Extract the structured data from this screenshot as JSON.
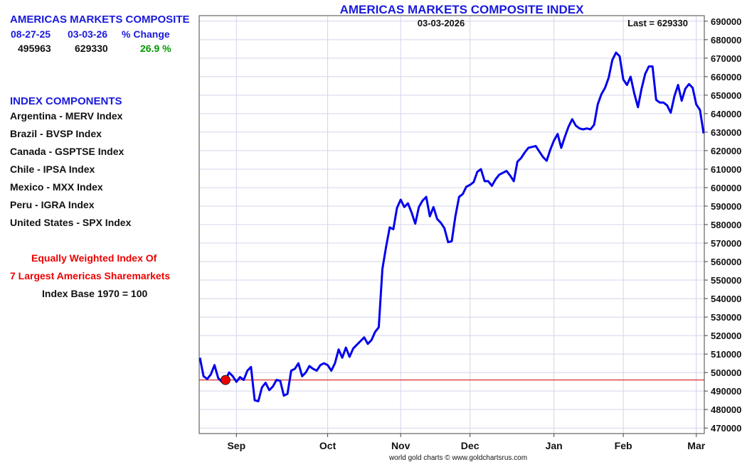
{
  "chart_title": "AMERICAS MARKETS COMPOSITE INDEX",
  "chart_date": "03-03-2026",
  "chart_last": "Last = 629330",
  "footer": "world gold charts © www.goldchartsrus.com",
  "summary": {
    "title": "AMERICAS MARKETS COMPOSITE",
    "col1_header": "08-27-25",
    "col2_header": "03-03-26",
    "col3_header": "% Change",
    "col1_value": "495963",
    "col2_value": "629330",
    "col3_value": "26.9 %"
  },
  "components": {
    "title": "INDEX COMPONENTS",
    "items": [
      "Argentina - MERV Index",
      "Brazil - BVSP Index",
      "Canada - GSPTSE Index",
      "Chile - IPSA Index",
      "Mexico - MXX Index",
      "Peru - IGRA Index",
      "United States - SPX Index"
    ]
  },
  "notes": {
    "line1": "Equally Weighted Index Of",
    "line2": "7 Largest Americas Sharemarkets",
    "line3": "Index Base 1970 = 100"
  },
  "colors": {
    "line": "#0000ee",
    "reference_line": "#cc0000",
    "marker": "#ee0000",
    "grid": "#d4d4ec",
    "title": "#1a1adc"
  },
  "chart_data": {
    "type": "line",
    "title": "AMERICAS MARKETS COMPOSITE INDEX",
    "x_labels": [
      "Sep",
      "Oct",
      "Nov",
      "Dec",
      "Jan",
      "Feb",
      "Mar"
    ],
    "x_label_index": [
      10,
      35,
      55,
      74,
      97,
      116,
      136
    ],
    "y_ticks": [
      "470000",
      "480000",
      "490000",
      "500000",
      "510000",
      "520000",
      "530000",
      "540000",
      "550000",
      "560000",
      "570000",
      "580000",
      "590000",
      "600000",
      "610000",
      "620000",
      "630000",
      "640000",
      "650000",
      "660000",
      "670000",
      "680000",
      "690000"
    ],
    "ylim": [
      467000,
      693000
    ],
    "grid": true,
    "reference_value": 495963,
    "marker_index": 7,
    "series": [
      {
        "values": [
          508000,
          498000,
          496500,
          499000,
          504000,
          497000,
          495000,
          495963,
          500000,
          498000,
          495000,
          497500,
          496000,
          501000,
          503000,
          485000,
          484500,
          492000,
          494500,
          490500,
          492500,
          496000,
          495500,
          487500,
          488500,
          501000,
          502000,
          505000,
          498000,
          500000,
          503500,
          502000,
          501000,
          504000,
          505000,
          504000,
          501000,
          505000,
          512500,
          508000,
          513500,
          508500,
          513000,
          515000,
          517000,
          519000,
          515500,
          517500,
          522000,
          524500,
          556000,
          568000,
          578500,
          577500,
          589000,
          593500,
          589500,
          591500,
          586500,
          580500,
          589500,
          593000,
          595000,
          584500,
          589500,
          583000,
          581000,
          578000,
          570500,
          571000,
          584500,
          595000,
          596500,
          600500,
          601500,
          603000,
          608500,
          610000,
          603500,
          603500,
          601000,
          604500,
          607000,
          608000,
          609000,
          606500,
          603500,
          614000,
          616000,
          619000,
          621500,
          622000,
          622500,
          619500,
          616500,
          614500,
          620500,
          625500,
          629000,
          621500,
          627500,
          633000,
          637000,
          633500,
          632000,
          631500,
          632000,
          631500,
          634000,
          645000,
          650500,
          654000,
          659500,
          669000,
          673000,
          671000,
          658500,
          655500,
          660000,
          651000,
          643500,
          653500,
          661500,
          665500,
          665500,
          647500,
          646000,
          646000,
          644500,
          640500,
          649500,
          655500,
          647000,
          653500,
          656000,
          654000,
          645000,
          642000,
          629330
        ]
      }
    ]
  }
}
